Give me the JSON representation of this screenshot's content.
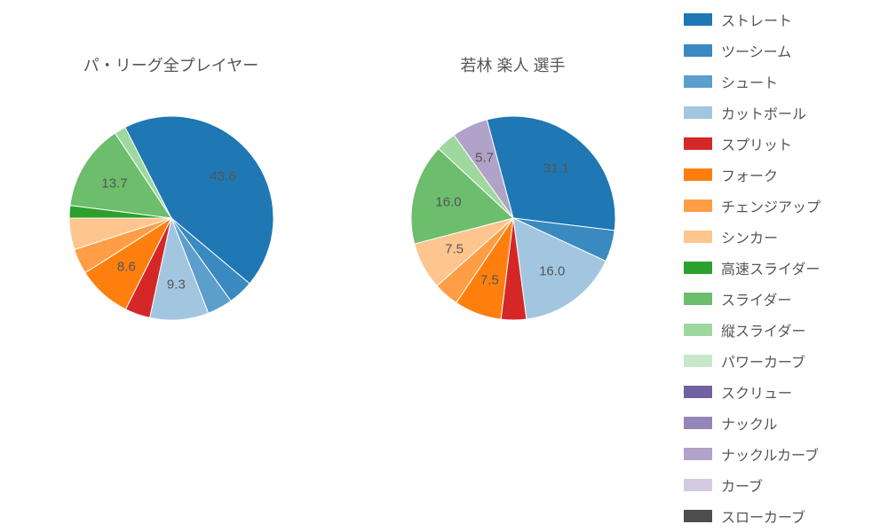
{
  "background_color": "#ffffff",
  "text_color": "#555555",
  "label_fontsize": 15,
  "title_fontsize": 18,
  "legend_fontsize": 16,
  "charts": [
    {
      "title": "パ・リーグ全プレイヤー",
      "radius": 115,
      "start_angle_deg": -27,
      "direction": "clockwise",
      "slices": [
        {
          "value": 43.6,
          "color": "#1f77b4",
          "label": "43.6",
          "show_label": true
        },
        {
          "value": 4.0,
          "color": "#3a89c0",
          "label": "",
          "show_label": false
        },
        {
          "value": 4.0,
          "color": "#5c9ecc",
          "label": "",
          "show_label": false
        },
        {
          "value": 9.3,
          "color": "#a3c6e0",
          "label": "9.3",
          "show_label": true
        },
        {
          "value": 4.0,
          "color": "#d62728",
          "label": "",
          "show_label": false
        },
        {
          "value": 8.6,
          "color": "#ff7f0e",
          "label": "8.6",
          "show_label": true
        },
        {
          "value": 4.0,
          "color": "#ff9d46",
          "label": "",
          "show_label": false
        },
        {
          "value": 5.0,
          "color": "#ffc58f",
          "label": "",
          "show_label": false
        },
        {
          "value": 2.0,
          "color": "#2ca02c",
          "label": "",
          "show_label": false
        },
        {
          "value": 13.7,
          "color": "#6cbd6c",
          "label": "13.7",
          "show_label": true
        },
        {
          "value": 1.8,
          "color": "#9fd89f",
          "label": "",
          "show_label": false
        }
      ]
    },
    {
      "title": "若林 楽人  選手",
      "radius": 115,
      "start_angle_deg": -15,
      "direction": "clockwise",
      "slices": [
        {
          "value": 31.1,
          "color": "#1f77b4",
          "label": "31.1",
          "show_label": true
        },
        {
          "value": 5.0,
          "color": "#3a89c0",
          "label": "",
          "show_label": false
        },
        {
          "value": 16.0,
          "color": "#a3c6e0",
          "label": "16.0",
          "show_label": true
        },
        {
          "value": 4.0,
          "color": "#d62728",
          "label": "",
          "show_label": false
        },
        {
          "value": 7.5,
          "color": "#ff7f0e",
          "label": "7.5",
          "show_label": true
        },
        {
          "value": 4.0,
          "color": "#ff9d46",
          "label": "",
          "show_label": false
        },
        {
          "value": 7.5,
          "color": "#ffc58f",
          "label": "7.5",
          "show_label": true
        },
        {
          "value": 16.0,
          "color": "#6cbd6c",
          "label": "16.0",
          "show_label": true
        },
        {
          "value": 3.2,
          "color": "#9fd89f",
          "label": "",
          "show_label": false
        },
        {
          "value": 5.7,
          "color": "#b0a2c8",
          "label": "5.7",
          "show_label": true
        }
      ]
    }
  ],
  "legend": {
    "swatch_width": 32,
    "swatch_height": 14,
    "items": [
      {
        "label": "ストレート",
        "color": "#1f77b4"
      },
      {
        "label": "ツーシーム",
        "color": "#3a89c0"
      },
      {
        "label": "シュート",
        "color": "#5c9ecc"
      },
      {
        "label": "カットボール",
        "color": "#a3c6e0"
      },
      {
        "label": "スプリット",
        "color": "#d62728"
      },
      {
        "label": "フォーク",
        "color": "#ff7f0e"
      },
      {
        "label": "チェンジアップ",
        "color": "#ff9d46"
      },
      {
        "label": "シンカー",
        "color": "#ffc58f"
      },
      {
        "label": "高速スライダー",
        "color": "#2ca02c"
      },
      {
        "label": "スライダー",
        "color": "#6cbd6c"
      },
      {
        "label": "縦スライダー",
        "color": "#9fd89f"
      },
      {
        "label": "パワーカーブ",
        "color": "#c9e8c9"
      },
      {
        "label": "スクリュー",
        "color": "#7061a0"
      },
      {
        "label": "ナックル",
        "color": "#9486b8"
      },
      {
        "label": "ナックルカーブ",
        "color": "#b0a2c8"
      },
      {
        "label": "カーブ",
        "color": "#d4cae0"
      },
      {
        "label": "スローカーブ",
        "color": "#4d4d4d"
      }
    ]
  }
}
